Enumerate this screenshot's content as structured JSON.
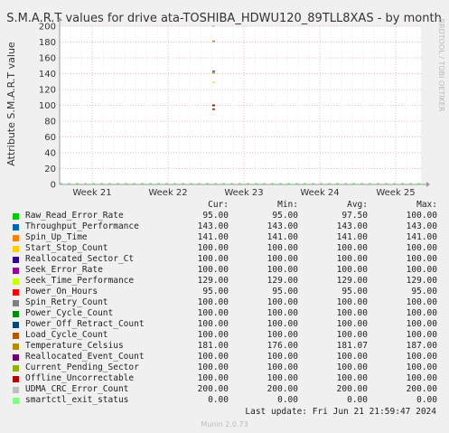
{
  "chart_data": {
    "type": "line",
    "title": "S.M.A.R.T values for drive ata-TOSHIBA_HDWU120_89TLL8XAS - by month",
    "ylabel": "Attribute S.M.A.R.T value",
    "side_label": "RRDTOOL / TOBI OETIKER",
    "ylim": [
      0,
      200
    ],
    "yticks": [
      0,
      20,
      40,
      60,
      80,
      100,
      120,
      140,
      160,
      180,
      200
    ],
    "grid": true,
    "xticks": [
      "Week 21",
      "Week 22",
      "Week 23",
      "Week 24",
      "Week 25"
    ],
    "legend_header": {
      "cur": "Cur:",
      "min": "Min:",
      "avg": "Avg:",
      "max": "Max:"
    },
    "series": [
      {
        "name": "Raw_Read_Error_Rate",
        "color": "#00cc00",
        "cur": "95.00",
        "min": "95.00",
        "avg": "97.50",
        "max": "100.00",
        "value": 95
      },
      {
        "name": "Throughput_Performance",
        "color": "#0066b3",
        "cur": "143.00",
        "min": "143.00",
        "avg": "143.00",
        "max": "143.00",
        "value": 143
      },
      {
        "name": "Spin_Up_Time",
        "color": "#ff8000",
        "cur": "141.00",
        "min": "141.00",
        "avg": "141.00",
        "max": "141.00",
        "value": 141
      },
      {
        "name": "Start_Stop_Count",
        "color": "#ffcc00",
        "cur": "100.00",
        "min": "100.00",
        "avg": "100.00",
        "max": "100.00",
        "value": 100
      },
      {
        "name": "Reallocated_Sector_Ct",
        "color": "#330099",
        "cur": "100.00",
        "min": "100.00",
        "avg": "100.00",
        "max": "100.00",
        "value": 100
      },
      {
        "name": "Seek_Error_Rate",
        "color": "#990099",
        "cur": "100.00",
        "min": "100.00",
        "avg": "100.00",
        "max": "100.00",
        "value": 100
      },
      {
        "name": "Seek_Time_Performance",
        "color": "#ccff00",
        "cur": "129.00",
        "min": "129.00",
        "avg": "129.00",
        "max": "129.00",
        "value": 129
      },
      {
        "name": "Power_On_Hours",
        "color": "#ff0000",
        "cur": "95.00",
        "min": "95.00",
        "avg": "95.00",
        "max": "95.00",
        "value": 95
      },
      {
        "name": "Spin_Retry_Count",
        "color": "#808080",
        "cur": "100.00",
        "min": "100.00",
        "avg": "100.00",
        "max": "100.00",
        "value": 100
      },
      {
        "name": "Power_Cycle_Count",
        "color": "#008f00",
        "cur": "100.00",
        "min": "100.00",
        "avg": "100.00",
        "max": "100.00",
        "value": 100
      },
      {
        "name": "Power_Off_Retract_Count",
        "color": "#00487d",
        "cur": "100.00",
        "min": "100.00",
        "avg": "100.00",
        "max": "100.00",
        "value": 100
      },
      {
        "name": "Load_Cycle_Count",
        "color": "#b35a00",
        "cur": "100.00",
        "min": "100.00",
        "avg": "100.00",
        "max": "100.00",
        "value": 100
      },
      {
        "name": "Temperature_Celsius",
        "color": "#b38f00",
        "cur": "181.00",
        "min": "176.00",
        "avg": "181.07",
        "max": "187.00",
        "value": 181
      },
      {
        "name": "Reallocated_Event_Count",
        "color": "#6b006b",
        "cur": "100.00",
        "min": "100.00",
        "avg": "100.00",
        "max": "100.00",
        "value": 100
      },
      {
        "name": "Current_Pending_Sector",
        "color": "#8fb300",
        "cur": "100.00",
        "min": "100.00",
        "avg": "100.00",
        "max": "100.00",
        "value": 100
      },
      {
        "name": "Offline_Uncorrectable",
        "color": "#b30000",
        "cur": "100.00",
        "min": "100.00",
        "avg": "100.00",
        "max": "100.00",
        "value": 100
      },
      {
        "name": "UDMA_CRC_Error_Count",
        "color": "#bebebe",
        "cur": "200.00",
        "min": "200.00",
        "avg": "200.00",
        "max": "200.00",
        "value": 200
      },
      {
        "name": "smartctl_exit_status",
        "color": "#80ff80",
        "cur": "0.00",
        "min": "0.00",
        "avg": "0.00",
        "max": "0.00",
        "value": 0
      }
    ]
  },
  "footer": {
    "last_update": "Last update: Fri Jun 21 21:59:47 2024",
    "munin": "Munin 2.0.73"
  }
}
